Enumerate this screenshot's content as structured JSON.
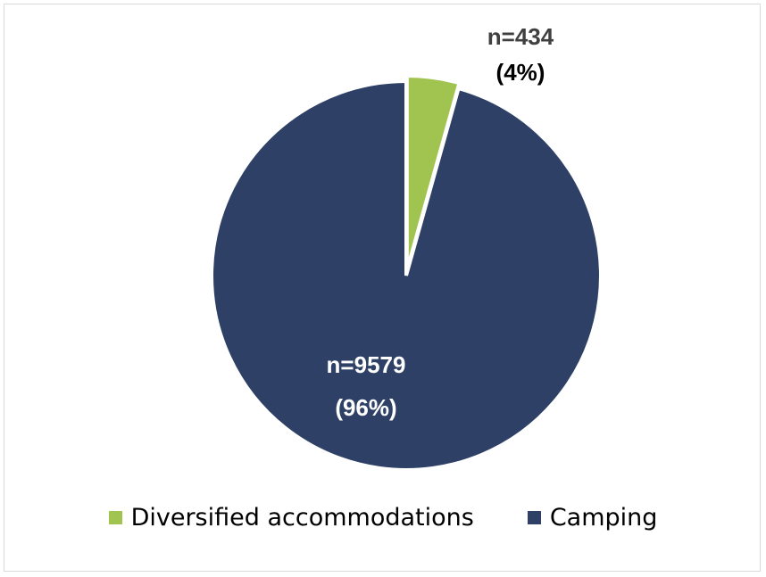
{
  "chart_data": {
    "type": "pie",
    "series": [
      {
        "name": "Diversified accommodations",
        "value": 434,
        "percent": 4,
        "value_label": "n=434",
        "percent_label": "(4%)",
        "color": "#a1c451"
      },
      {
        "name": "Camping",
        "value": 9579,
        "percent": 96,
        "value_label": "n=9579",
        "percent_label": "(96%)",
        "color": "#2e4066"
      }
    ],
    "legend_position": "bottom"
  }
}
